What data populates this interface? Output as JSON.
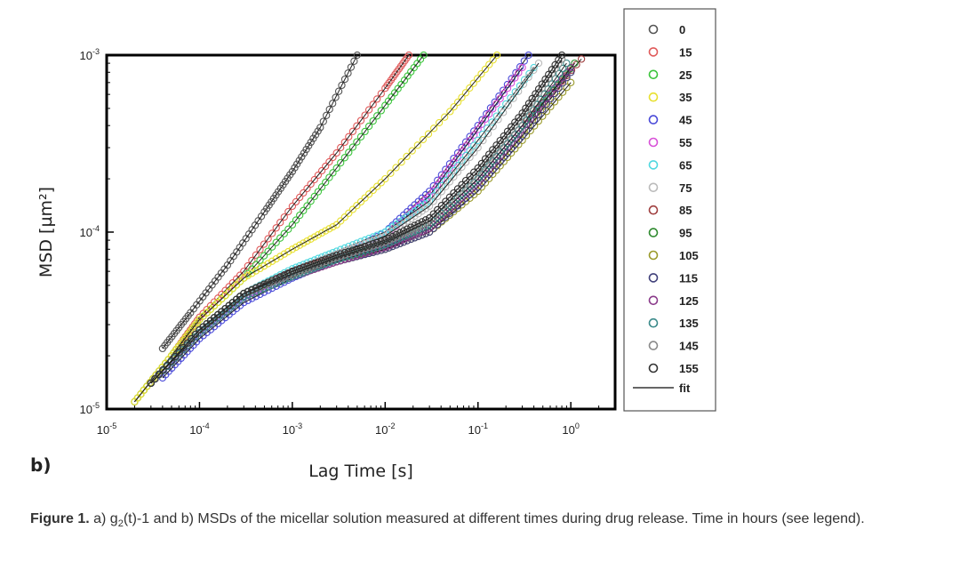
{
  "chart_data": {
    "type": "scatter",
    "panel_label": "b)",
    "xlabel": "Lag Time [s]",
    "ylabel": "MSD [µm²]",
    "xscale": "log",
    "yscale": "log",
    "xlim": [
      1e-05,
      3
    ],
    "ylim": [
      1e-05,
      0.001
    ],
    "x_ticks": [
      {
        "value": 1e-05,
        "base": "10",
        "exp": "-5"
      },
      {
        "value": 0.0001,
        "base": "10",
        "exp": "-4"
      },
      {
        "value": 0.001,
        "base": "10",
        "exp": "-3"
      },
      {
        "value": 0.01,
        "base": "10",
        "exp": "-2"
      },
      {
        "value": 0.1,
        "base": "10",
        "exp": "-1"
      },
      {
        "value": 1,
        "base": "10",
        "exp": "0"
      }
    ],
    "y_ticks": [
      {
        "value": 1e-05,
        "base": "10",
        "exp": "-5"
      },
      {
        "value": 0.0001,
        "base": "10",
        "exp": "-4"
      },
      {
        "value": 0.001,
        "base": "10",
        "exp": "-3"
      }
    ],
    "legend_position": "right",
    "fit_label": "fit",
    "series": [
      {
        "name": "0",
        "color": "#555555",
        "x": [
          4e-05,
          8e-05,
          0.0002,
          0.0005,
          0.001,
          0.002,
          0.005
        ],
        "y": [
          2.2e-05,
          3.5e-05,
          6.5e-05,
          0.00013,
          0.00022,
          0.00039,
          0.001
        ]
      },
      {
        "name": "15",
        "color": "#e05a5a",
        "x": [
          2e-05,
          5e-05,
          0.0001,
          0.0003,
          0.001,
          0.003,
          0.01,
          0.018
        ],
        "y": [
          1.1e-05,
          2e-05,
          3.3e-05,
          6e-05,
          0.00014,
          0.00028,
          0.00065,
          0.001
        ]
      },
      {
        "name": "25",
        "color": "#3cc43c",
        "x": [
          2e-05,
          5e-05,
          0.0001,
          0.0003,
          0.001,
          0.003,
          0.01,
          0.026
        ],
        "y": [
          1.1e-05,
          2e-05,
          3.2e-05,
          5.5e-05,
          0.00011,
          0.00023,
          0.00052,
          0.001
        ]
      },
      {
        "name": "35",
        "color": "#e8e030",
        "x": [
          2e-05,
          5e-05,
          0.0001,
          0.0003,
          0.001,
          0.003,
          0.01,
          0.05,
          0.16
        ],
        "y": [
          1.1e-05,
          2e-05,
          3.2e-05,
          5.5e-05,
          8e-05,
          0.00011,
          0.0002,
          0.00048,
          0.001
        ]
      },
      {
        "name": "45",
        "color": "#4a4ad8",
        "x": [
          4e-05,
          0.0001,
          0.0003,
          0.001,
          0.003,
          0.01,
          0.03,
          0.1,
          0.35
        ],
        "y": [
          1.5e-05,
          2.5e-05,
          4e-05,
          5.5e-05,
          7e-05,
          0.0001,
          0.00017,
          0.0004,
          0.001
        ]
      },
      {
        "name": "55",
        "color": "#d850d8",
        "x": [
          3e-05,
          0.0001,
          0.0003,
          0.001,
          0.003,
          0.01,
          0.03,
          0.1,
          0.3
        ],
        "y": [
          1.4e-05,
          2.7e-05,
          4.3e-05,
          6e-05,
          7.5e-05,
          9.5e-05,
          0.00016,
          0.00038,
          0.00085
        ]
      },
      {
        "name": "65",
        "color": "#50d8e0",
        "x": [
          3e-05,
          0.0001,
          0.0003,
          0.001,
          0.003,
          0.01,
          0.03,
          0.1,
          0.4
        ],
        "y": [
          1.4e-05,
          2.8e-05,
          4.5e-05,
          6.2e-05,
          7.8e-05,
          0.0001,
          0.00015,
          0.00033,
          0.00085
        ]
      },
      {
        "name": "75",
        "color": "#bbbbbb",
        "x": [
          3e-05,
          0.0001,
          0.0003,
          0.001,
          0.003,
          0.01,
          0.03,
          0.1,
          0.45
        ],
        "y": [
          1.4e-05,
          2.8e-05,
          4.5e-05,
          6e-05,
          7.5e-05,
          9.5e-05,
          0.00014,
          0.0003,
          0.0009
        ]
      },
      {
        "name": "85",
        "color": "#a04040",
        "x": [
          3e-05,
          0.0001,
          0.0003,
          0.001,
          0.003,
          0.01,
          0.03,
          0.1,
          0.3,
          1.3
        ],
        "y": [
          1.4e-05,
          2.8e-05,
          4.5e-05,
          6e-05,
          7.2e-05,
          8.5e-05,
          0.00011,
          0.0002,
          0.0004,
          0.00095
        ]
      },
      {
        "name": "95",
        "color": "#2f8a2f",
        "x": [
          3e-05,
          0.0001,
          0.0003,
          0.001,
          0.003,
          0.01,
          0.03,
          0.1,
          0.3,
          1.1
        ],
        "y": [
          1.4e-05,
          2.8e-05,
          4.5e-05,
          5.8e-05,
          7e-05,
          8.2e-05,
          0.000105,
          0.00019,
          0.00038,
          0.0009
        ]
      },
      {
        "name": "105",
        "color": "#9a9a2a",
        "x": [
          3e-05,
          0.0001,
          0.0003,
          0.001,
          0.003,
          0.01,
          0.03,
          0.1,
          0.3,
          1
        ],
        "y": [
          1.4e-05,
          2.7e-05,
          4.3e-05,
          5.6e-05,
          6.8e-05,
          8e-05,
          0.0001,
          0.00017,
          0.00033,
          0.0007
        ]
      },
      {
        "name": "115",
        "color": "#40407a",
        "x": [
          3e-05,
          0.0001,
          0.0003,
          0.001,
          0.003,
          0.01,
          0.03,
          0.1,
          0.3,
          1
        ],
        "y": [
          1.4e-05,
          2.7e-05,
          4.3e-05,
          5.6e-05,
          6.8e-05,
          8e-05,
          0.0001,
          0.00018,
          0.00035,
          0.0008
        ]
      },
      {
        "name": "125",
        "color": "#8a3a8a",
        "x": [
          3e-05,
          0.0001,
          0.0003,
          0.001,
          0.003,
          0.01,
          0.03,
          0.1,
          0.3,
          1
        ],
        "y": [
          1.4e-05,
          2.7e-05,
          4.3e-05,
          5.6e-05,
          6.8e-05,
          8.2e-05,
          0.000105,
          0.00019,
          0.00038,
          0.00085
        ]
      },
      {
        "name": "135",
        "color": "#3a8a8a",
        "x": [
          3e-05,
          0.0001,
          0.0003,
          0.001,
          0.003,
          0.01,
          0.03,
          0.1,
          0.3,
          0.9
        ],
        "y": [
          1.4e-05,
          2.7e-05,
          4.3e-05,
          5.6e-05,
          7e-05,
          8.5e-05,
          0.00011,
          0.0002,
          0.0004,
          0.0009
        ]
      },
      {
        "name": "145",
        "color": "#8a8a8a",
        "x": [
          3e-05,
          0.0001,
          0.0003,
          0.001,
          0.003,
          0.01,
          0.03,
          0.1,
          0.3,
          0.8
        ],
        "y": [
          1.4e-05,
          2.8e-05,
          4.5e-05,
          5.8e-05,
          7.2e-05,
          8.8e-05,
          0.000115,
          0.00022,
          0.00045,
          0.00095
        ]
      },
      {
        "name": "155",
        "color": "#333333",
        "x": [
          3e-05,
          0.0001,
          0.0003,
          0.001,
          0.003,
          0.01,
          0.03,
          0.1,
          0.3,
          0.8
        ],
        "y": [
          1.4e-05,
          2.8e-05,
          4.5e-05,
          6e-05,
          7.4e-05,
          9e-05,
          0.00012,
          0.00023,
          0.00047,
          0.001
        ]
      }
    ]
  },
  "caption": {
    "label": "Figure 1.",
    "part1": " a) g",
    "sub": "2",
    "part2": "(t)-1 and b) MSDs of the micellar solution measured at different times during drug release. Time in hours (see legend)."
  }
}
